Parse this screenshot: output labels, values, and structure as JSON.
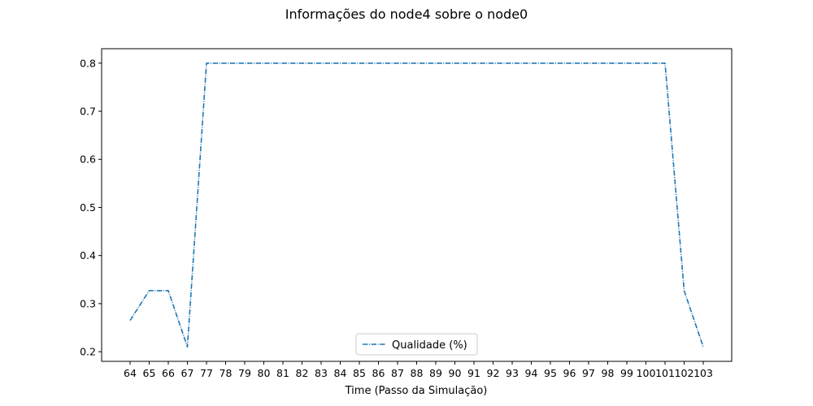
{
  "chart_data": {
    "type": "line",
    "title": "Informações do node4 sobre o node0",
    "xlabel": "Time (Passo da Simulação)",
    "ylabel": "",
    "categories": [
      "64",
      "65",
      "66",
      "67",
      "77",
      "78",
      "79",
      "80",
      "81",
      "82",
      "83",
      "84",
      "85",
      "86",
      "87",
      "88",
      "89",
      "90",
      "91",
      "92",
      "93",
      "94",
      "95",
      "96",
      "97",
      "98",
      "99",
      "100",
      "101",
      "102",
      "103"
    ],
    "series": [
      {
        "name": "Qualidade (%)",
        "color": "#1f77b4",
        "line_style": "dash-dot",
        "values": [
          0.265,
          0.327,
          0.327,
          0.21,
          0.8,
          0.8,
          0.8,
          0.8,
          0.8,
          0.8,
          0.8,
          0.8,
          0.8,
          0.8,
          0.8,
          0.8,
          0.8,
          0.8,
          0.8,
          0.8,
          0.8,
          0.8,
          0.8,
          0.8,
          0.8,
          0.8,
          0.8,
          0.8,
          0.8,
          0.327,
          0.21
        ]
      }
    ],
    "yticks": [
      "0.2",
      "0.3",
      "0.4",
      "0.5",
      "0.6",
      "0.7",
      "0.8"
    ],
    "ylim": [
      0.18,
      0.83
    ],
    "grid": false,
    "legend_position": "lower-center"
  }
}
